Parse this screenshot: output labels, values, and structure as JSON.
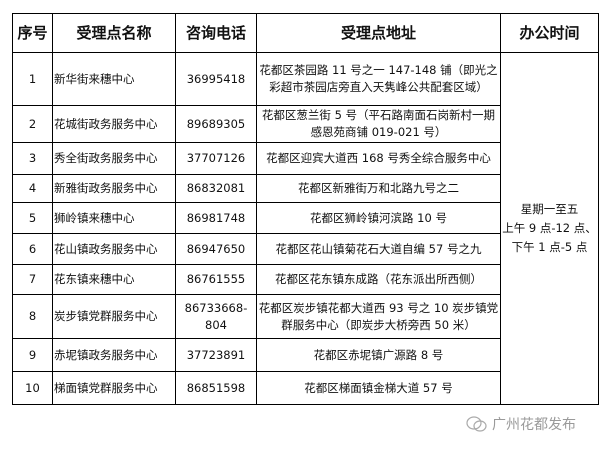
{
  "table": {
    "headers": [
      "序号",
      "受理点名称",
      "咨询电话",
      "受理点地址",
      "办公时间"
    ],
    "rows": [
      {
        "no": "1",
        "name": "新华街来穗中心",
        "phone": "36995418",
        "address": "花都区茶园路 11 号之一 147-148 铺（即光之彩超市茶园店旁直入天隽峰公共配套区域）"
      },
      {
        "no": "2",
        "name": "花城街政务服务中心",
        "phone": "89689305",
        "address": "花都区葱兰街 5 号（平石路南面石岗新村一期感恩苑商铺 019-021 号）"
      },
      {
        "no": "3",
        "name": "秀全街政务服务中心",
        "phone": "37707126",
        "address": "花都区迎宾大道西 168 号秀全综合服务中心"
      },
      {
        "no": "4",
        "name": "新雅街政务服务中心",
        "phone": "86832081",
        "address": "花都区新雅街万和北路九号之二"
      },
      {
        "no": "5",
        "name": "狮岭镇来穗中心",
        "phone": "86981748",
        "address": "花都区狮岭镇河滨路 10 号"
      },
      {
        "no": "6",
        "name": "花山镇政务服务中心",
        "phone": "86947650",
        "address": "花都区花山镇菊花石大道自编 57 号之九"
      },
      {
        "no": "7",
        "name": "花东镇来穗中心",
        "phone": "86761555",
        "address": "花都区花东镇东成路（花东派出所西侧）"
      },
      {
        "no": "8",
        "name": "炭步镇党群服务中心",
        "phone": "86733668-804",
        "address": "花都区炭步镇花都大道西 93 号之 10 炭步镇党群服务中心（即炭步大桥旁西 50 米）"
      },
      {
        "no": "9",
        "name": "赤坭镇政务服务中心",
        "phone": "37723891",
        "address": "花都区赤坭镇广源路 8 号"
      },
      {
        "no": "10",
        "name": "梯面镇党群服务中心",
        "phone": "86851598",
        "address": "花都区梯面镇金梯大道 57 号"
      }
    ],
    "hours": {
      "line1": "星期一至五",
      "line2": "上午 9 点-12 点、",
      "line3": "下午 1 点-5 点"
    }
  },
  "watermark": {
    "text": "广州花都发布",
    "icon": "wechat-icon"
  }
}
